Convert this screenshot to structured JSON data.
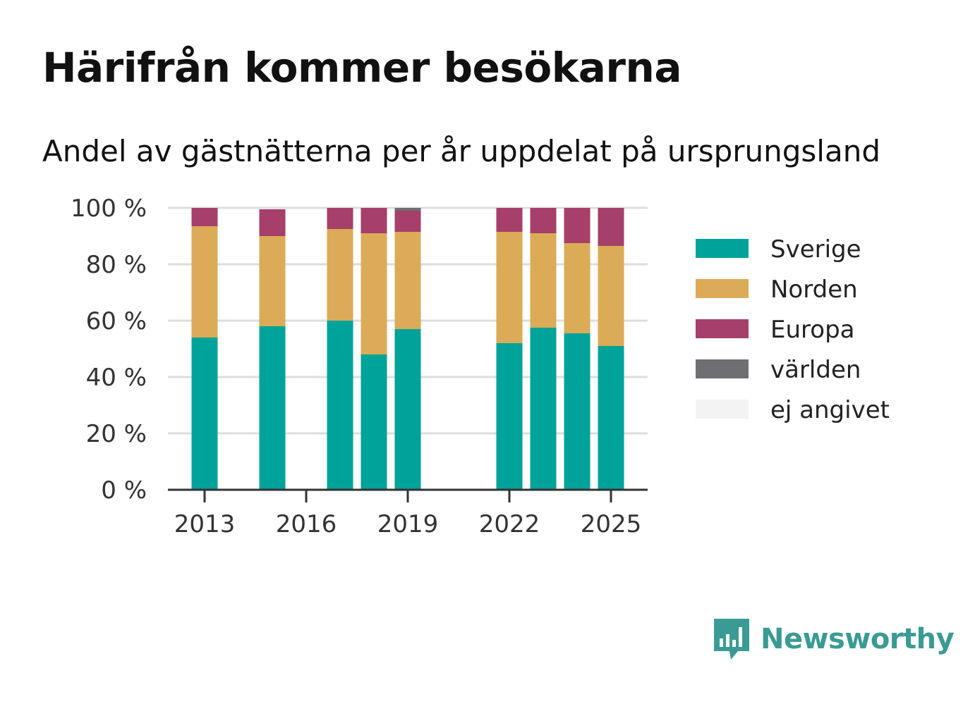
{
  "title": "Härifrån kommer besökarna",
  "subtitle": "Andel av gästnätterna per år uppdelat på ursprungsland",
  "brand": {
    "name": "Newsworthy",
    "color": "#3a9b94"
  },
  "chart_data": {
    "type": "bar",
    "stacked": true,
    "x": [
      2013,
      2015,
      2017,
      2018,
      2019,
      2022,
      2023,
      2024,
      2025
    ],
    "x_ticks": [
      "2013",
      "2016",
      "2019",
      "2022",
      "2025"
    ],
    "xlim": [
      2012.5,
      2025.5
    ],
    "y_ticks": [
      "0 %",
      "20 %",
      "40 %",
      "60 %",
      "80 %",
      "100 %"
    ],
    "ylim": [
      0,
      100
    ],
    "grid": true,
    "legend_position": "right",
    "series": [
      {
        "name": "Sverige",
        "color": "#00a399",
        "values": [
          54,
          58,
          60,
          48,
          57,
          52,
          57.5,
          55.5,
          51
        ]
      },
      {
        "name": "Norden",
        "color": "#dbab57",
        "values": [
          39.5,
          32,
          32.5,
          43,
          34.5,
          39.5,
          33.5,
          32,
          35.5
        ]
      },
      {
        "name": "Europa",
        "color": "#a63f69",
        "values": [
          6.5,
          9.5,
          7.5,
          9,
          7.5,
          8.5,
          9,
          12.5,
          13.5
        ]
      },
      {
        "name": "världen",
        "color": "#6e6e73",
        "values": [
          0,
          0,
          0,
          0,
          1,
          0,
          0,
          0,
          0
        ]
      },
      {
        "name": "ej angivet",
        "color": "#f3f3f3",
        "values": [
          0,
          0,
          0,
          0,
          0,
          0,
          0,
          0,
          0
        ]
      }
    ]
  }
}
